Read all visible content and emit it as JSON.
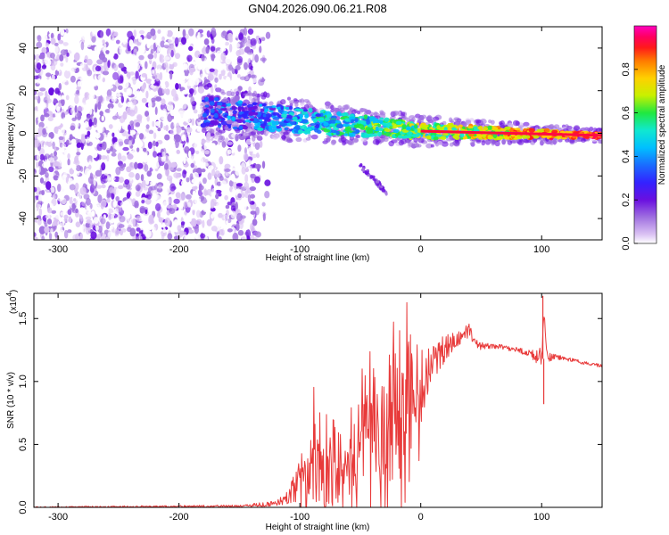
{
  "figure_title": "GN04.2026.090.06.21.R08",
  "colors": {
    "line": "#e83a3a",
    "axis": "#000000",
    "spectrogram_scale": [
      "#ffffff",
      "#dcc4f4",
      "#a070e0",
      "#6a10e0",
      "#3322ff",
      "#1a6cff",
      "#00c0ff",
      "#10e8d0",
      "#20e840",
      "#c8f000",
      "#ffd000",
      "#ff7a00",
      "#ff1a1a",
      "#ff0060",
      "#ff00c0"
    ]
  },
  "chart_data": [
    {
      "type": "heatmap",
      "xlabel": "Height of straight line (km)",
      "ylabel": "Frequency (Hz)",
      "xlim": [
        -320,
        150
      ],
      "ylim": [
        -50,
        50
      ],
      "x_ticks": [
        -300,
        -200,
        -100,
        0,
        100
      ],
      "y_ticks": [
        -40,
        -20,
        0,
        20,
        40
      ],
      "colorbar": {
        "label": "Normalized spectral amplitude",
        "range": [
          0,
          1
        ],
        "ticks": [
          0.0,
          0.2,
          0.4,
          0.6,
          0.8
        ],
        "tick_labels": [
          "0.0",
          "0.2",
          "0.4",
          "0.6",
          "0.8"
        ]
      },
      "features": [
        {
          "name": "noise",
          "x_range": [
            -320,
            -125
          ],
          "y_range": [
            -50,
            48
          ],
          "amplitude_range": [
            0.0,
            0.2
          ]
        },
        {
          "name": "signal_band",
          "x_range": [
            -180,
            150
          ],
          "center_freq_start": 10,
          "center_freq_end": -1,
          "amplitude_range": [
            0.2,
            1.0
          ]
        },
        {
          "name": "secondary_branch",
          "x_range": [
            -50,
            -28
          ],
          "freq_range": [
            -28,
            -15
          ],
          "amplitude_range": [
            0.1,
            0.2
          ]
        }
      ]
    },
    {
      "type": "line",
      "xlabel": "Height of straight line (km)",
      "ylabel": "SNR (10 * v/v)",
      "y_multiplier": "(x10",
      "y_multiplier_exp": "4",
      "y_multiplier_close": ")",
      "xlim": [
        -320,
        150
      ],
      "ylim": [
        0,
        1.7
      ],
      "x_ticks": [
        -300,
        -200,
        -100,
        0,
        100
      ],
      "y_ticks": [
        0.0,
        0.5,
        1.0,
        1.5
      ],
      "y_tick_labels": [
        "0.0",
        "0.5",
        "1.0",
        "1.5"
      ],
      "series": [
        {
          "name": "SNR",
          "x": [
            -320,
            -150,
            -120,
            -110,
            -100,
            -90,
            -80,
            -70,
            -60,
            -50,
            -40,
            -30,
            -20,
            -10,
            0,
            5,
            10,
            20,
            30,
            40,
            45,
            50,
            60,
            70,
            80,
            90,
            95,
            100,
            102,
            105,
            110,
            120,
            130,
            140,
            150
          ],
          "y": [
            0.0,
            0.01,
            0.03,
            0.08,
            0.2,
            0.35,
            0.4,
            0.35,
            0.4,
            0.5,
            0.7,
            0.55,
            0.75,
            0.95,
            0.95,
            1.05,
            1.15,
            1.25,
            1.35,
            1.4,
            1.3,
            1.28,
            1.28,
            1.27,
            1.25,
            1.22,
            1.2,
            1.2,
            1.6,
            1.18,
            1.2,
            1.18,
            1.16,
            1.14,
            1.12
          ],
          "noise_band": [
            [
              -320,
              0.005
            ],
            [
              -150,
              0.01
            ],
            [
              -120,
              0.02
            ],
            [
              -110,
              0.05
            ],
            [
              -100,
              0.25
            ],
            [
              -90,
              0.35
            ],
            [
              -80,
              0.4
            ],
            [
              -70,
              0.35
            ],
            [
              -60,
              0.35
            ],
            [
              -50,
              0.4
            ],
            [
              -40,
              0.45
            ],
            [
              -30,
              0.5
            ],
            [
              -20,
              0.5
            ],
            [
              -10,
              0.5
            ],
            [
              0,
              0.3
            ],
            [
              5,
              0.2
            ],
            [
              10,
              0.15
            ],
            [
              20,
              0.12
            ],
            [
              30,
              0.08
            ],
            [
              40,
              0.06
            ],
            [
              45,
              0.04
            ],
            [
              50,
              0.03
            ],
            [
              60,
              0.02
            ],
            [
              70,
              0.02
            ],
            [
              80,
              0.02
            ],
            [
              90,
              0.03
            ],
            [
              95,
              0.05
            ],
            [
              100,
              0.08
            ],
            [
              102,
              0.1
            ],
            [
              105,
              0.05
            ],
            [
              110,
              0.02
            ],
            [
              120,
              0.015
            ],
            [
              130,
              0.015
            ],
            [
              140,
              0.015
            ],
            [
              150,
              0.015
            ]
          ]
        }
      ]
    }
  ]
}
